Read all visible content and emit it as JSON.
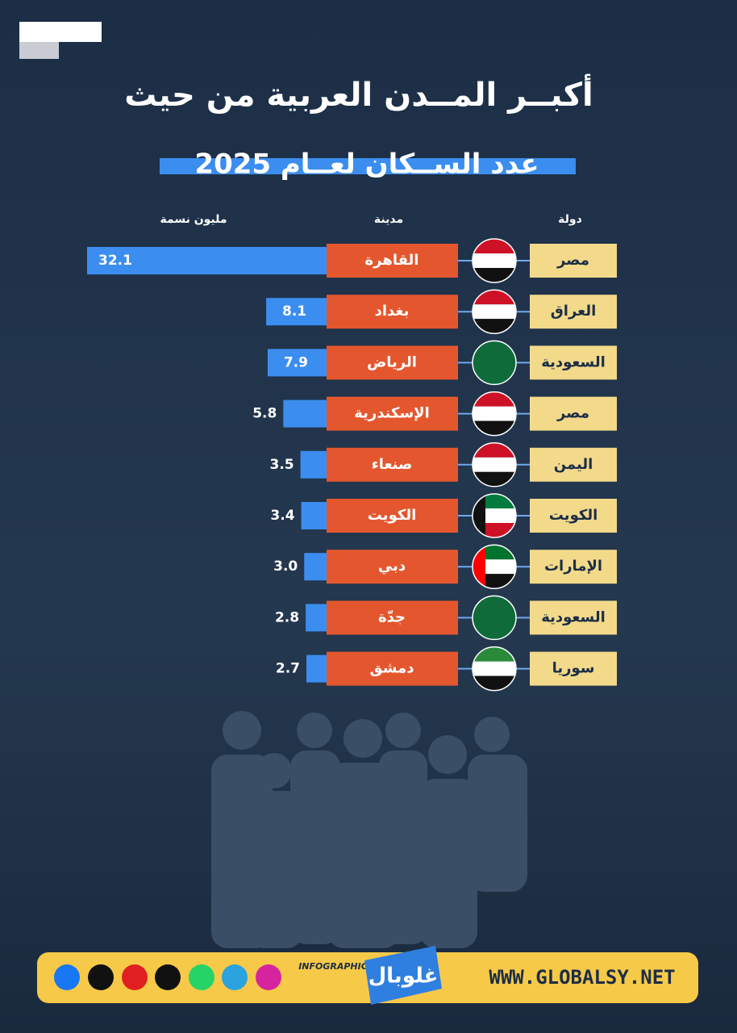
{
  "chart_data": {
    "type": "bar",
    "title": "أكبــر المــدن العربية من حيث",
    "subtitle": "عدد الســكان لعــام 2025",
    "column_headers": {
      "country": "دولة",
      "city": "مدينة",
      "value": "مليون نسمة"
    },
    "categories": [
      "القاهرة",
      "بغداد",
      "الرياض",
      "الإسكندرية",
      "صنعاء",
      "الكويت",
      "دبي",
      "جدّة",
      "دمشق"
    ],
    "countries": [
      "مصر",
      "العراق",
      "السعودية",
      "مصر",
      "اليمن",
      "الكويت",
      "الإمارات",
      "السعودية",
      "سوريا"
    ],
    "values": [
      32.1,
      8.1,
      7.9,
      5.8,
      3.5,
      3.4,
      3.0,
      2.8,
      2.7
    ],
    "value_labels": [
      "32.1",
      "8.1",
      "7.9",
      "5.8",
      "3.5",
      "3.4",
      "3.0",
      "2.8",
      "2.7"
    ],
    "color": "#3b8ef0",
    "footer": {
      "brand_tag": "INFOGRAPHIC",
      "logo": "غلوبال",
      "website": "WWW.GLOBALSY.NET"
    }
  }
}
